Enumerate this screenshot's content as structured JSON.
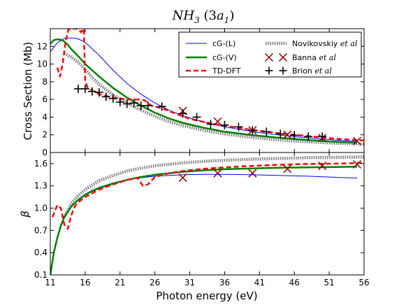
{
  "figure": {
    "title_main": "NH",
    "title_sub": "3",
    "title_rest": " (3",
    "title_a": "a",
    "title_a_sub": "1",
    "title_close": ")"
  },
  "chart_data": [
    {
      "type": "line",
      "panel": "top",
      "ylabel": "Cross Section (Mb)",
      "xlim": [
        11,
        56
      ],
      "ylim": [
        0,
        14
      ],
      "yticks": [
        0,
        2,
        4,
        6,
        8,
        10,
        12
      ],
      "legend_position": "top-right",
      "series": [
        {
          "name": "cG-(L)",
          "style": "line",
          "color": "#0000ff",
          "width": 1,
          "x": [
            11,
            12,
            13,
            14,
            15,
            16,
            18,
            20,
            22,
            24,
            26,
            28,
            30,
            33,
            36,
            40,
            44,
            48,
            52,
            55
          ],
          "y": [
            11.4,
            12.4,
            12.9,
            12.95,
            12.85,
            12.45,
            11.0,
            9.3,
            7.8,
            6.6,
            5.6,
            4.8,
            4.15,
            3.45,
            2.9,
            2.35,
            1.95,
            1.65,
            1.4,
            1.25
          ]
        },
        {
          "name": "cG-(V)",
          "style": "line",
          "color": "#008000",
          "width": 2.5,
          "x": [
            11,
            11.5,
            12,
            12.5,
            13,
            13.5,
            14,
            15,
            16,
            18,
            20,
            22,
            24,
            26,
            28,
            30,
            33,
            36,
            40,
            44,
            48,
            52,
            55
          ],
          "y": [
            12.3,
            12.7,
            12.8,
            12.75,
            12.55,
            12.2,
            11.7,
            10.9,
            10.0,
            8.6,
            7.3,
            6.2,
            5.3,
            4.5,
            3.85,
            3.35,
            2.8,
            2.35,
            1.95,
            1.65,
            1.4,
            1.2,
            1.1
          ]
        },
        {
          "name": "TD-DFT",
          "style": "dashed",
          "color": "#ff0000",
          "width": 2.5,
          "x": [
            12,
            12.4,
            12.8,
            13.2,
            13.6,
            14,
            14.5,
            15,
            15.4,
            15.8,
            16,
            16.3,
            16.8,
            18,
            20,
            22,
            23.5,
            24.5,
            25.5,
            27,
            29,
            31,
            34,
            37,
            40,
            44,
            48,
            52,
            56
          ],
          "y": [
            9.6,
            8.6,
            10.2,
            12.6,
            13.9,
            14.0,
            14.0,
            14.0,
            13.6,
            14.0,
            8.2,
            7.4,
            7.1,
            6.6,
            6.2,
            6.0,
            6.0,
            5.9,
            5.3,
            5.0,
            4.4,
            3.8,
            3.3,
            2.9,
            2.55,
            2.15,
            1.85,
            1.55,
            1.35
          ]
        },
        {
          "name": "Novikovskiy et al",
          "name_main": "Novikovskiy",
          "name_ital": "et al",
          "style": "dotted",
          "color": "#808080",
          "width": 4.5,
          "x": [
            13,
            14,
            15,
            16,
            17,
            18,
            20,
            22,
            24,
            26,
            28,
            30,
            33,
            36,
            40,
            44,
            48,
            52,
            56
          ],
          "y": [
            11.2,
            10.8,
            10.2,
            9.4,
            8.5,
            7.7,
            6.5,
            5.6,
            4.8,
            4.1,
            3.5,
            3.05,
            2.5,
            2.1,
            1.7,
            1.4,
            1.2,
            1.05,
            0.95
          ]
        },
        {
          "name": "Banna et al",
          "name_main": "Banna",
          "name_ital": "et al",
          "style": "x",
          "color": "#8b0000",
          "x": [
            30,
            35,
            40,
            45,
            50,
            55
          ],
          "y": [
            4.7,
            3.5,
            2.5,
            2.0,
            1.65,
            1.3
          ]
        },
        {
          "name": "Brion et al",
          "name_main": "Brion",
          "name_ital": "et al",
          "style": "plus",
          "color": "#000000",
          "x": [
            15,
            16,
            17,
            18,
            19,
            20,
            21,
            22,
            23,
            24,
            25,
            27,
            30,
            32,
            34,
            36,
            38,
            40,
            42,
            44,
            46,
            48,
            50
          ],
          "y": [
            7.2,
            7.2,
            6.9,
            6.8,
            6.3,
            6.1,
            5.7,
            5.5,
            5.6,
            5.3,
            5.3,
            5.2,
            4.4,
            4.0,
            3.2,
            3.1,
            2.9,
            2.5,
            2.35,
            2.1,
            1.95,
            1.8,
            1.8
          ]
        }
      ]
    },
    {
      "type": "line",
      "panel": "bottom",
      "xlabel": "Photon energy (eV)",
      "ylabel": "β",
      "xlim": [
        11,
        56
      ],
      "ylim": [
        0.1,
        1.75
      ],
      "yticks": [
        0.1,
        0.4,
        0.7,
        1.0,
        1.3,
        1.6
      ],
      "xticks": [
        11,
        16,
        21,
        26,
        31,
        36,
        41,
        46,
        51,
        56
      ],
      "series": [
        {
          "name": "cG-(L)",
          "style": "line",
          "color": "#0000ff",
          "width": 1,
          "x": [
            11,
            11.5,
            12,
            12.5,
            13,
            14,
            15,
            16,
            17,
            18,
            20,
            22,
            24,
            26,
            28,
            30,
            33,
            36,
            40,
            44,
            48,
            52,
            55
          ],
          "y": [
            0.1,
            0.4,
            0.62,
            0.78,
            0.89,
            1.03,
            1.12,
            1.19,
            1.24,
            1.28,
            1.34,
            1.38,
            1.41,
            1.43,
            1.44,
            1.45,
            1.455,
            1.455,
            1.45,
            1.44,
            1.43,
            1.415,
            1.405
          ]
        },
        {
          "name": "cG-(V)",
          "style": "line",
          "color": "#008000",
          "width": 2.5,
          "x": [
            11,
            11.5,
            12,
            12.5,
            13,
            14,
            15,
            16,
            17,
            18,
            20,
            22,
            24,
            26,
            28,
            30,
            33,
            36,
            40,
            44,
            48,
            52,
            55
          ],
          "y": [
            0.1,
            0.4,
            0.6,
            0.76,
            0.88,
            1.02,
            1.11,
            1.18,
            1.23,
            1.27,
            1.33,
            1.38,
            1.42,
            1.45,
            1.47,
            1.49,
            1.51,
            1.525,
            1.535,
            1.545,
            1.55,
            1.555,
            1.56
          ]
        },
        {
          "name": "TD-DFT",
          "style": "dashed",
          "color": "#ff0000",
          "width": 2.5,
          "x": [
            11.3,
            12,
            12.5,
            13,
            13.5,
            14,
            14.5,
            15,
            16,
            17,
            18,
            20,
            22,
            23.5,
            24.3,
            25,
            26,
            28,
            30,
            33,
            36,
            40,
            44,
            48,
            52,
            56
          ],
          "y": [
            0.88,
            1.04,
            1.0,
            0.78,
            0.72,
            0.9,
            1.02,
            1.08,
            1.15,
            1.2,
            1.25,
            1.32,
            1.38,
            1.41,
            1.3,
            1.32,
            1.42,
            1.47,
            1.5,
            1.53,
            1.55,
            1.57,
            1.585,
            1.595,
            1.6,
            1.61
          ]
        },
        {
          "name": "Novikovskiy et al",
          "style": "dotted",
          "color": "#808080",
          "width": 4.5,
          "x": [
            13,
            14,
            15,
            16,
            17,
            18,
            20,
            22,
            24,
            26,
            28,
            30,
            33,
            36,
            40,
            44,
            48,
            52,
            56
          ],
          "y": [
            0.88,
            1.06,
            1.17,
            1.25,
            1.31,
            1.37,
            1.44,
            1.5,
            1.54,
            1.57,
            1.59,
            1.61,
            1.63,
            1.645,
            1.66,
            1.67,
            1.68,
            1.685,
            1.69
          ]
        },
        {
          "name": "Banna et al",
          "style": "x",
          "color": "#8b0000",
          "x": [
            30,
            35,
            40,
            45,
            50,
            55
          ],
          "y": [
            1.41,
            1.47,
            1.47,
            1.53,
            1.57,
            1.59
          ]
        }
      ]
    }
  ]
}
